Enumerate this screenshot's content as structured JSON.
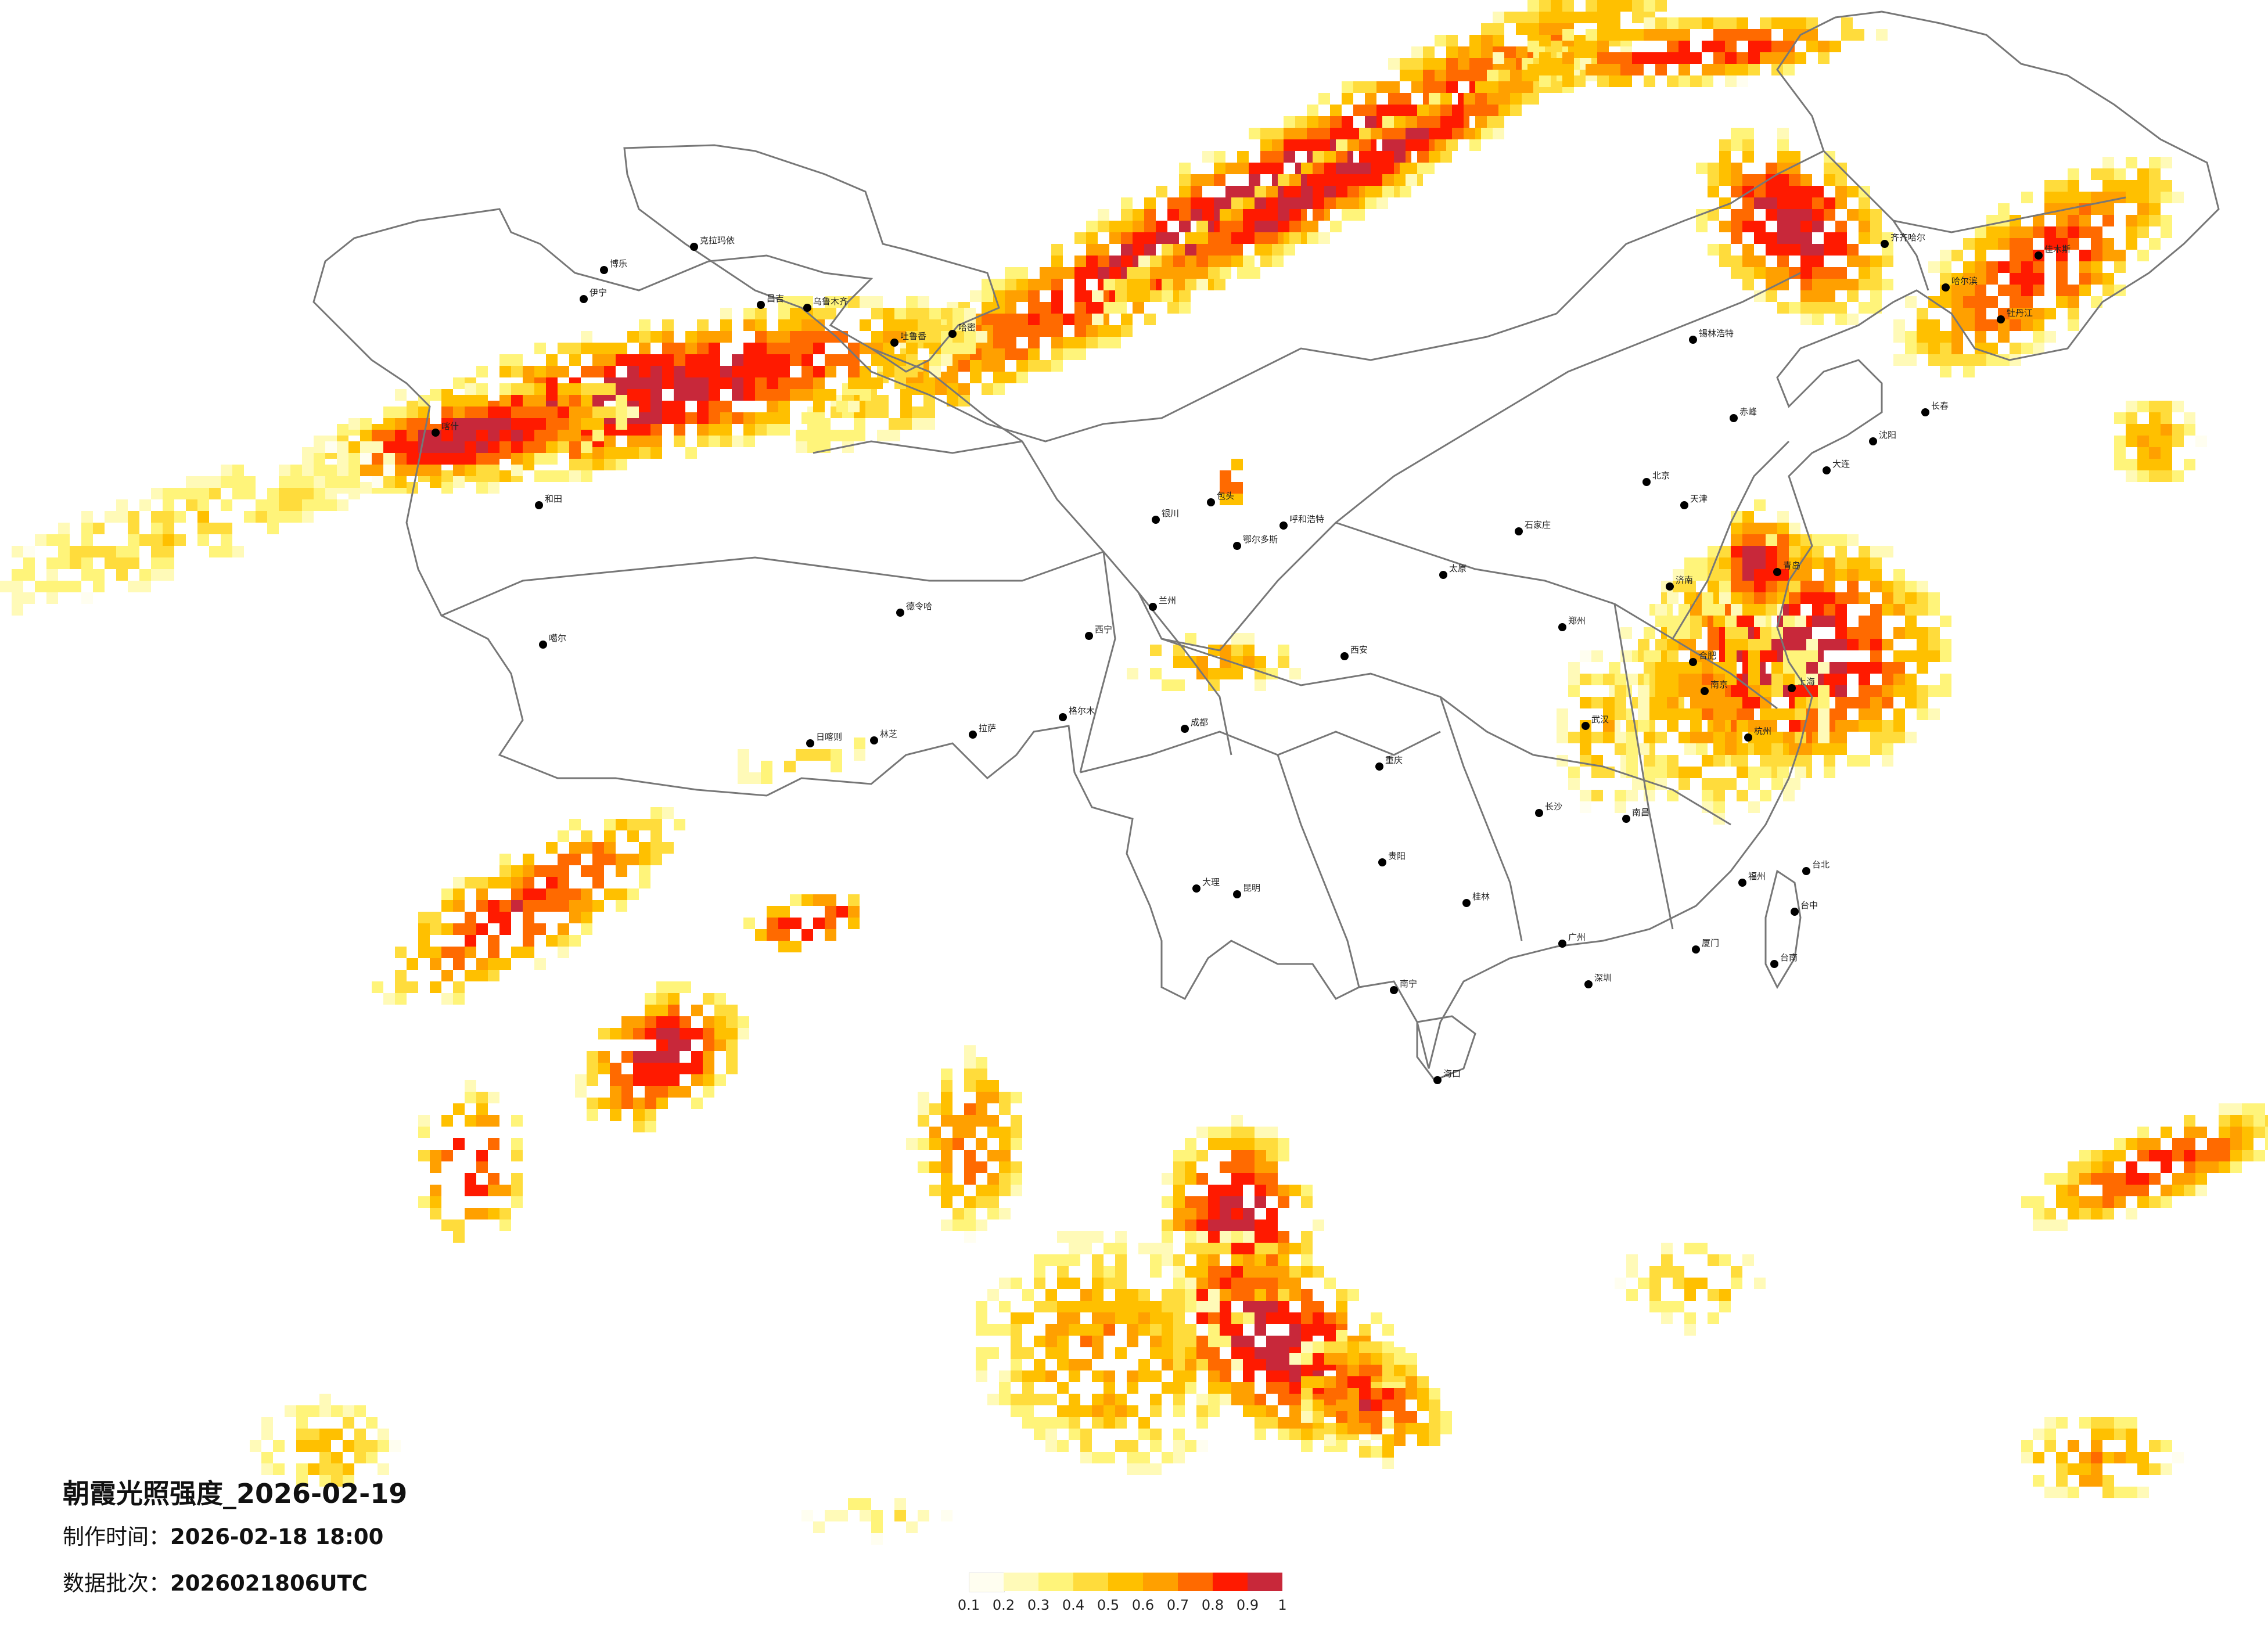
{
  "title": "朝霞光照强度_2026-02-19",
  "made_time_label": "制作时间：",
  "made_time_value": "2026-02-18 18:00",
  "batch_label": "数据批次：",
  "batch_value": "2026021806UTC",
  "legend": {
    "colors": [
      "#fffef0",
      "#fffab8",
      "#fff47a",
      "#ffdc3c",
      "#ffc000",
      "#ffa000",
      "#ff6a00",
      "#ff1a00",
      "#c8283a"
    ],
    "ticks": [
      "0.1",
      "0.2",
      "0.3",
      "0.4",
      "0.5",
      "0.6",
      "0.7",
      "0.8",
      "0.9",
      "1"
    ]
  },
  "cities": [
    {
      "name": "克拉玛依"
    },
    {
      "name": "博乐"
    },
    {
      "name": "伊宁"
    },
    {
      "name": "昌吉"
    },
    {
      "name": "乌鲁木齐"
    },
    {
      "name": "吐鲁番"
    },
    {
      "name": "哈密"
    },
    {
      "name": "喀什"
    },
    {
      "name": "和田"
    },
    {
      "name": "德令哈"
    },
    {
      "name": "格尔木"
    },
    {
      "name": "噶尔"
    },
    {
      "name": "拉萨"
    },
    {
      "name": "日喀则"
    },
    {
      "name": "林芝"
    },
    {
      "name": "西宁"
    },
    {
      "name": "兰州"
    },
    {
      "name": "银川"
    },
    {
      "name": "呼和浩特"
    },
    {
      "name": "包头"
    },
    {
      "name": "鄂尔多斯"
    },
    {
      "name": "太原"
    },
    {
      "name": "石家庄"
    },
    {
      "name": "北京"
    },
    {
      "name": "天津"
    },
    {
      "name": "济南"
    },
    {
      "name": "青岛"
    },
    {
      "name": "郑州"
    },
    {
      "name": "西安"
    },
    {
      "name": "成都"
    },
    {
      "name": "重庆"
    },
    {
      "name": "贵阳"
    },
    {
      "name": "昆明"
    },
    {
      "name": "南宁"
    },
    {
      "name": "广州"
    },
    {
      "name": "深圳"
    },
    {
      "name": "海口"
    },
    {
      "name": "长沙"
    },
    {
      "name": "武汉"
    },
    {
      "name": "南昌"
    },
    {
      "name": "福州"
    },
    {
      "name": "厦门"
    },
    {
      "name": "杭州"
    },
    {
      "name": "上海"
    },
    {
      "name": "南京"
    },
    {
      "name": "合肥"
    },
    {
      "name": "沈阳"
    },
    {
      "name": "长春"
    },
    {
      "name": "哈尔滨"
    },
    {
      "name": "齐齐哈尔"
    },
    {
      "name": "大连"
    },
    {
      "name": "台北"
    },
    {
      "name": "台中"
    },
    {
      "name": "台南"
    },
    {
      "name": "佳木斯"
    },
    {
      "name": "牡丹江"
    },
    {
      "name": "锡林浩特"
    },
    {
      "name": "赤峰"
    },
    {
      "name": "大理"
    },
    {
      "name": "桂林"
    }
  ]
}
